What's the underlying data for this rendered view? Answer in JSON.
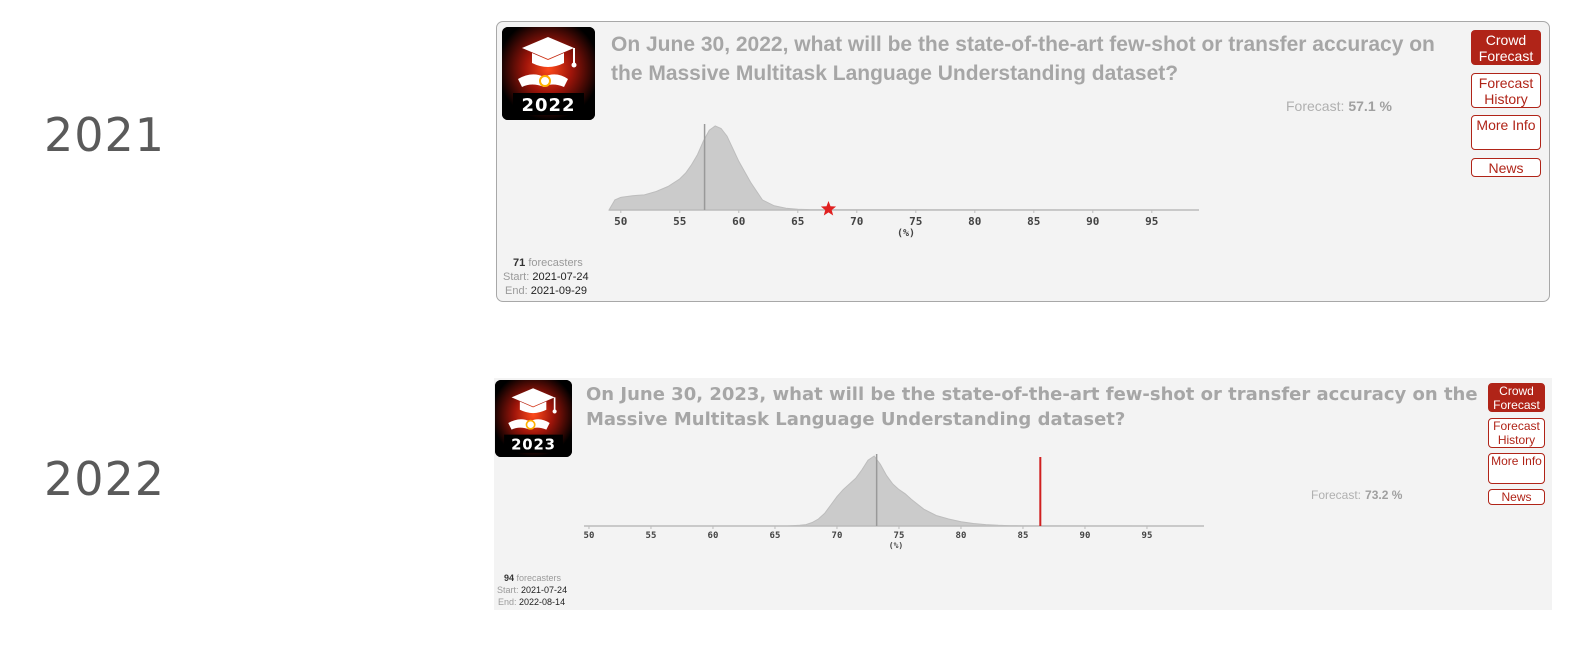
{
  "sections": [
    {
      "year_label": "2021",
      "card": {
        "logo_year": "2022",
        "question": "On June 30, 2022, what will be the state-of-the-art few-shot or transfer accuracy on the Massive Multitask Language Understanding dataset?",
        "forecast_label": "Forecast:",
        "forecast_value": "57.1 %",
        "buttons": {
          "crowd_forecast": "Crowd Forecast",
          "forecast_history": "Forecast History",
          "more_info": "More Info",
          "news": "News"
        },
        "forecasters_count": "71",
        "forecasters_label": "forecasters",
        "start_label": "Start:",
        "start_date": "2021-07-24",
        "end_label": "End:",
        "end_date": "2021-09-29"
      }
    },
    {
      "year_label": "2022",
      "card": {
        "logo_year": "2023",
        "question": "On June 30, 2023, what will be the state-of-the-art few-shot or transfer accuracy on the Massive Multitask Language Understanding dataset?",
        "forecast_label": "Forecast:",
        "forecast_value": "73.2 %",
        "buttons": {
          "crowd_forecast": "Crowd Forecast",
          "forecast_history": "Forecast History",
          "more_info": "More Info",
          "news": "News"
        },
        "forecasters_count": "94",
        "forecasters_label": "forecasters",
        "start_label": "Start:",
        "start_date": "2021-07-24",
        "end_label": "End:",
        "end_date": "2022-08-14"
      }
    }
  ],
  "chart_data": [
    {
      "type": "area",
      "xlabel": "(%)",
      "xlim": [
        49,
        99
      ],
      "ticks": [
        50,
        55,
        60,
        65,
        70,
        75,
        80,
        85,
        90,
        95
      ],
      "distribution": {
        "x": [
          49.0,
          49.5,
          50,
          51,
          52,
          53,
          54,
          55,
          55.5,
          56,
          56.5,
          57,
          57.5,
          58,
          58.5,
          59,
          59.5,
          60,
          61,
          62,
          63,
          64,
          65,
          66,
          67,
          98
        ],
        "y": [
          0,
          0.12,
          0.15,
          0.17,
          0.18,
          0.22,
          0.28,
          0.37,
          0.44,
          0.54,
          0.66,
          0.82,
          0.95,
          1.0,
          0.97,
          0.88,
          0.73,
          0.58,
          0.33,
          0.12,
          0.05,
          0.02,
          0.01,
          0.005,
          0.003,
          0.0
        ]
      },
      "median_line": 57.1,
      "resolution_marker": {
        "x": 67.6,
        "shape": "star",
        "color": "#e02020"
      },
      "colors": {
        "fill": "#cbcbcb",
        "stroke": "#bdbdbd",
        "median": "#999999",
        "axis": "#bbbbbb"
      }
    },
    {
      "type": "area",
      "xlabel": "(%)",
      "xlim": [
        49.6,
        99.6
      ],
      "ticks": [
        50,
        55,
        60,
        65,
        70,
        75,
        80,
        85,
        90,
        95
      ],
      "distribution": {
        "x": [
          49.6,
          66,
          67,
          67.5,
          68,
          68.5,
          69,
          69.5,
          70,
          70.5,
          71,
          71.5,
          72,
          72.5,
          73,
          73.5,
          74,
          74.5,
          75,
          75.5,
          76,
          77,
          78,
          79,
          80,
          81,
          82,
          83,
          84,
          85,
          99.6
        ],
        "y": [
          0,
          0,
          0.01,
          0.02,
          0.05,
          0.1,
          0.18,
          0.3,
          0.42,
          0.52,
          0.6,
          0.68,
          0.8,
          0.94,
          1.0,
          0.88,
          0.72,
          0.6,
          0.52,
          0.46,
          0.38,
          0.24,
          0.15,
          0.1,
          0.06,
          0.035,
          0.02,
          0.01,
          0.005,
          0.002,
          0
        ]
      },
      "median_line": 73.2,
      "resolution_line": {
        "x": 86.4,
        "color": "#d02020"
      },
      "colors": {
        "fill": "#cbcbcb",
        "stroke": "#bdbdbd",
        "median": "#999999",
        "axis": "#bbbbbb"
      }
    }
  ]
}
